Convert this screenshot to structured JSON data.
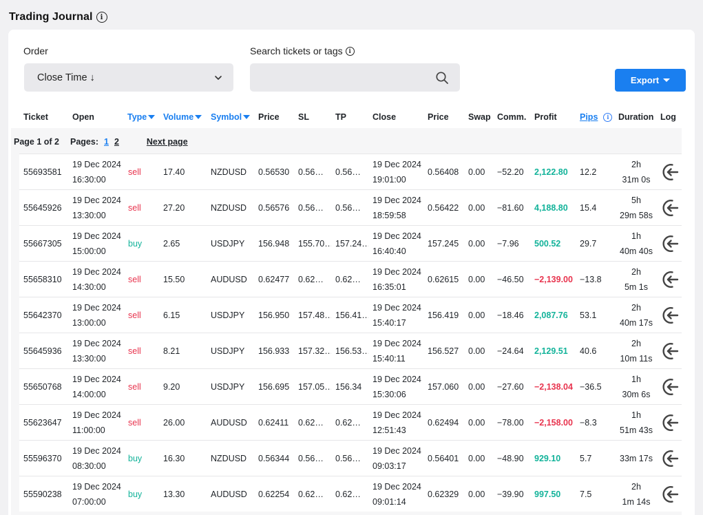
{
  "page": {
    "title": "Trading Journal"
  },
  "filters": {
    "order_label": "Order",
    "order_value": "Close Time ↓",
    "search_label": "Search tickets or tags",
    "search_value": "",
    "export_label": "Export"
  },
  "colors": {
    "accent": "#1a7ff0",
    "sell": "#e8344e",
    "buy": "#13b39a",
    "profit_positive": "#13b39a",
    "profit_negative": "#e8344e"
  },
  "icons": [
    "info-icon",
    "chevron-down-icon",
    "search-icon",
    "caret-down-icon",
    "log-icon"
  ],
  "columns": [
    "Ticket",
    "Open",
    "Type",
    "Volume",
    "Symbol",
    "Price",
    "SL",
    "TP",
    "Close",
    "Price",
    "Swap",
    "Comm.",
    "Profit",
    "Pips",
    "Duration",
    "Log"
  ],
  "pagination": {
    "page_info": "Page 1 of 2",
    "pages_label": "Pages:",
    "pages": [
      "1",
      "2"
    ],
    "current_page": "1",
    "next_label": "Next page"
  },
  "rows": [
    {
      "ticket": "55693581",
      "open_date": "19 Dec 2024",
      "open_time": "16:30:00",
      "type": "sell",
      "volume": "17.40",
      "symbol": "NZDUSD",
      "price": "0.56530",
      "sl": "0.56…",
      "tp": "0.56…",
      "close_date": "19 Dec 2024",
      "close_time": "19:01:00",
      "close_price": "0.56408",
      "swap": "0.00",
      "comm": "−52.20",
      "profit": "2,122.80",
      "pips": "12.2",
      "duration_1": "2h",
      "duration_2": "31m 0s"
    },
    {
      "ticket": "55645926",
      "open_date": "19 Dec 2024",
      "open_time": "13:30:00",
      "type": "sell",
      "volume": "27.20",
      "symbol": "NZDUSD",
      "price": "0.56576",
      "sl": "0.56…",
      "tp": "0.56…",
      "close_date": "19 Dec 2024",
      "close_time": "18:59:58",
      "close_price": "0.56422",
      "swap": "0.00",
      "comm": "−81.60",
      "profit": "4,188.80",
      "pips": "15.4",
      "duration_1": "5h",
      "duration_2": "29m 58s"
    },
    {
      "ticket": "55667305",
      "open_date": "19 Dec 2024",
      "open_time": "15:00:00",
      "type": "buy",
      "volume": "2.65",
      "symbol": "USDJPY",
      "price": "156.948",
      "sl": "155.70…",
      "tp": "157.24…",
      "close_date": "19 Dec 2024",
      "close_time": "16:40:40",
      "close_price": "157.245",
      "swap": "0.00",
      "comm": "−7.96",
      "profit": "500.52",
      "pips": "29.7",
      "duration_1": "1h",
      "duration_2": "40m 40s"
    },
    {
      "ticket": "55658310",
      "open_date": "19 Dec 2024",
      "open_time": "14:30:00",
      "type": "sell",
      "volume": "15.50",
      "symbol": "AUDUSD",
      "price": "0.62477",
      "sl": "0.62…",
      "tp": "0.62…",
      "close_date": "19 Dec 2024",
      "close_time": "16:35:01",
      "close_price": "0.62615",
      "swap": "0.00",
      "comm": "−46.50",
      "profit": "−2,139.00",
      "pips": "−13.8",
      "duration_1": "2h",
      "duration_2": "5m 1s"
    },
    {
      "ticket": "55642370",
      "open_date": "19 Dec 2024",
      "open_time": "13:00:00",
      "type": "sell",
      "volume": "6.15",
      "symbol": "USDJPY",
      "price": "156.950",
      "sl": "157.48…",
      "tp": "156.41…",
      "close_date": "19 Dec 2024",
      "close_time": "15:40:17",
      "close_price": "156.419",
      "swap": "0.00",
      "comm": "−18.46",
      "profit": "2,087.76",
      "pips": "53.1",
      "duration_1": "2h",
      "duration_2": "40m 17s"
    },
    {
      "ticket": "55645936",
      "open_date": "19 Dec 2024",
      "open_time": "13:30:00",
      "type": "sell",
      "volume": "8.21",
      "symbol": "USDJPY",
      "price": "156.933",
      "sl": "157.32…",
      "tp": "156.53…",
      "close_date": "19 Dec 2024",
      "close_time": "15:40:11",
      "close_price": "156.527",
      "swap": "0.00",
      "comm": "−24.64",
      "profit": "2,129.51",
      "pips": "40.6",
      "duration_1": "2h",
      "duration_2": "10m 11s"
    },
    {
      "ticket": "55650768",
      "open_date": "19 Dec 2024",
      "open_time": "14:00:00",
      "type": "sell",
      "volume": "9.20",
      "symbol": "USDJPY",
      "price": "156.695",
      "sl": "157.05…",
      "tp": "156.34",
      "close_date": "19 Dec 2024",
      "close_time": "15:30:06",
      "close_price": "157.060",
      "swap": "0.00",
      "comm": "−27.60",
      "profit": "−2,138.04",
      "pips": "−36.5",
      "duration_1": "1h",
      "duration_2": "30m 6s"
    },
    {
      "ticket": "55623647",
      "open_date": "19 Dec 2024",
      "open_time": "11:00:00",
      "type": "sell",
      "volume": "26.00",
      "symbol": "AUDUSD",
      "price": "0.62411",
      "sl": "0.62…",
      "tp": "0.62…",
      "close_date": "19 Dec 2024",
      "close_time": "12:51:43",
      "close_price": "0.62494",
      "swap": "0.00",
      "comm": "−78.00",
      "profit": "−2,158.00",
      "pips": "−8.3",
      "duration_1": "1h",
      "duration_2": "51m 43s"
    },
    {
      "ticket": "55596370",
      "open_date": "19 Dec 2024",
      "open_time": "08:30:00",
      "type": "buy",
      "volume": "16.30",
      "symbol": "NZDUSD",
      "price": "0.56344",
      "sl": "0.56…",
      "tp": "0.56…",
      "close_date": "19 Dec 2024",
      "close_time": "09:03:17",
      "close_price": "0.56401",
      "swap": "0.00",
      "comm": "−48.90",
      "profit": "929.10",
      "pips": "5.7",
      "duration_1": "",
      "duration_2": "33m 17s"
    },
    {
      "ticket": "55590238",
      "open_date": "19 Dec 2024",
      "open_time": "07:00:00",
      "type": "buy",
      "volume": "13.30",
      "symbol": "AUDUSD",
      "price": "0.62254",
      "sl": "0.62…",
      "tp": "0.62…",
      "close_date": "19 Dec 2024",
      "close_time": "09:01:14",
      "close_price": "0.62329",
      "swap": "0.00",
      "comm": "−39.90",
      "profit": "997.50",
      "pips": "7.5",
      "duration_1": "2h",
      "duration_2": "1m 14s"
    }
  ]
}
